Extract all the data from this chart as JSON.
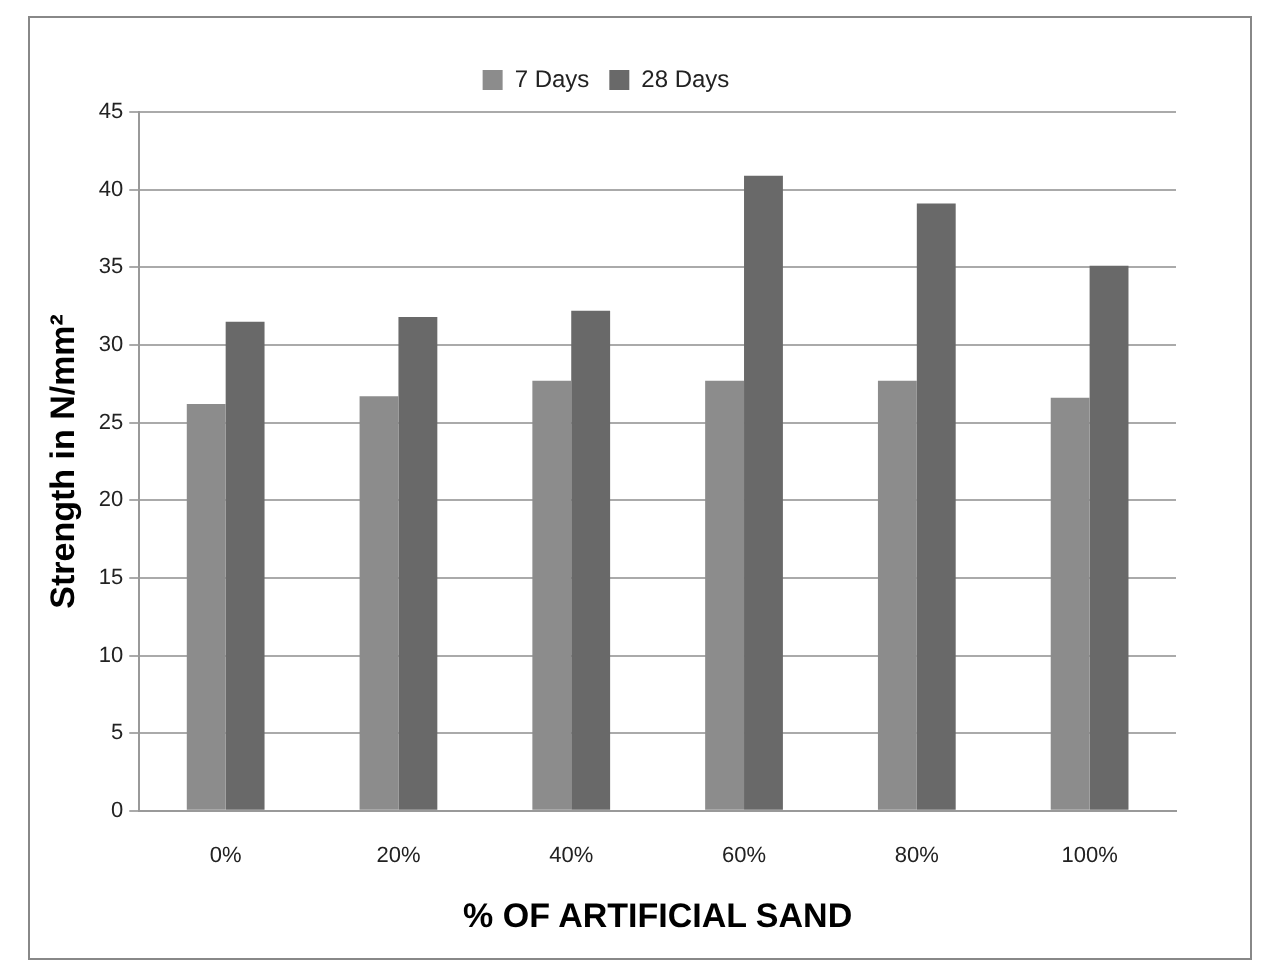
{
  "chart_data": {
    "type": "bar",
    "xlabel": "% OF ARTIFICIAL SAND",
    "ylabel": "Strength in N/mm²",
    "categories": [
      "0%",
      "20%",
      "40%",
      "60%",
      "80%",
      "100%"
    ],
    "series": [
      {
        "name": "7 Days",
        "color": "#8c8c8c",
        "values": [
          26.2,
          26.7,
          27.7,
          27.7,
          27.7,
          26.6
        ]
      },
      {
        "name": "28 Days",
        "color": "#696969",
        "values": [
          31.5,
          31.8,
          32.2,
          40.9,
          39.1,
          35.1
        ]
      }
    ],
    "ylim": [
      0,
      45
    ],
    "yticks": [
      0,
      5,
      10,
      15,
      20,
      25,
      30,
      35,
      40,
      45
    ],
    "grid": "y",
    "legend": "top"
  }
}
